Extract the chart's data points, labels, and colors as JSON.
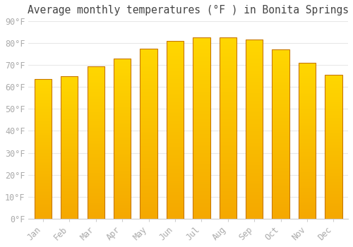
{
  "title": "Average monthly temperatures (°F ) in Bonita Springs",
  "months": [
    "Jan",
    "Feb",
    "Mar",
    "Apr",
    "May",
    "Jun",
    "Jul",
    "Aug",
    "Sep",
    "Oct",
    "Nov",
    "Dec"
  ],
  "values": [
    63.5,
    65.0,
    69.5,
    73.0,
    77.5,
    81.0,
    82.5,
    82.5,
    81.5,
    77.0,
    71.0,
    65.5
  ],
  "bar_color_top": "#FFD700",
  "bar_color_bottom": "#F5A800",
  "bar_edge_color": "#C87800",
  "ylim": [
    0,
    90
  ],
  "ytick_step": 10,
  "background_color": "#ffffff",
  "grid_color": "#e8e8e8",
  "title_fontsize": 10.5,
  "tick_fontsize": 8.5,
  "tick_color": "#aaaaaa"
}
